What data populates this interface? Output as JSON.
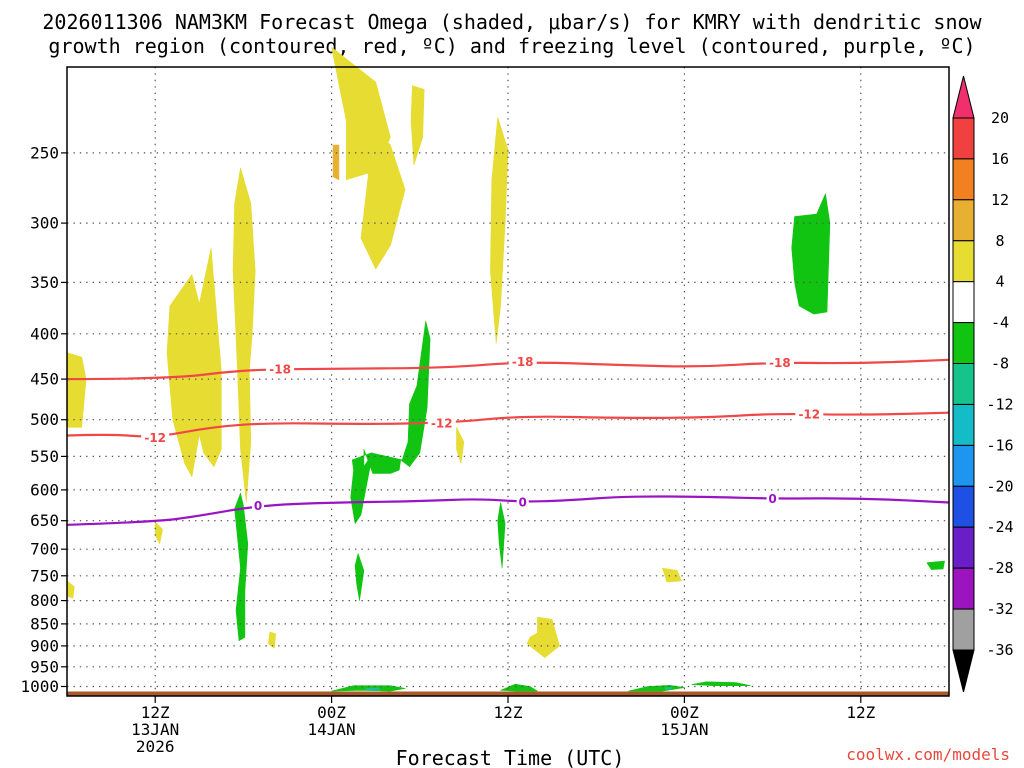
{
  "chart_data": {
    "type": "heatmap",
    "title_line1": "2026011306 NAM3KM Forecast Omega (shaded, μbar/s) for KMRY with dendritic snow",
    "title_line2": "growth region (contoured, red, ºC) and freezing level (contoured, purple, ºC)",
    "xlabel": "Forecast Time (UTC)",
    "credit": "coolwx.com/models",
    "x_range_hours": [
      0,
      60
    ],
    "y_range_hpa": [
      200,
      1025
    ],
    "y_ticks": [
      250,
      300,
      350,
      400,
      450,
      500,
      550,
      600,
      650,
      700,
      750,
      800,
      850,
      900,
      950,
      1000
    ],
    "x_ticks": [
      {
        "hour": 6,
        "line1": "12Z",
        "line2": "13JAN",
        "line3": "2026"
      },
      {
        "hour": 18,
        "line1": "00Z",
        "line2": "14JAN",
        "line3": ""
      },
      {
        "hour": 30,
        "line1": "12Z",
        "line2": "",
        "line3": ""
      },
      {
        "hour": 42,
        "line1": "00Z",
        "line2": "15JAN",
        "line3": ""
      },
      {
        "hour": 54,
        "line1": "12Z",
        "line2": "",
        "line3": ""
      }
    ],
    "colorbar": {
      "labels": [
        "20",
        "16",
        "12",
        "8",
        "4",
        "-4",
        "-8",
        "-12",
        "-16",
        "-20",
        "-24",
        "-28",
        "-32",
        "-36"
      ],
      "colors": [
        "#f0306e",
        "#f04040",
        "#f08020",
        "#e8b030",
        "#e6dc32",
        "#ffffff",
        "#12c412",
        "#14c48a",
        "#14bcc8",
        "#1e96f0",
        "#1e50e6",
        "#6a1ec8",
        "#9c14c0",
        "#a0a0a0",
        "#000000"
      ]
    },
    "isotherms": [
      {
        "label": "-18",
        "color": "#f04848",
        "label_hours": [
          14.5,
          31,
          48.5
        ],
        "points": [
          [
            0,
            450
          ],
          [
            7,
            450
          ],
          [
            12,
            439
          ],
          [
            18,
            438
          ],
          [
            26,
            437
          ],
          [
            31,
            430
          ],
          [
            38,
            434
          ],
          [
            43,
            436
          ],
          [
            48,
            431
          ],
          [
            54,
            432
          ],
          [
            60,
            428
          ]
        ]
      },
      {
        "label": "-12",
        "color": "#f04848",
        "label_hours": [
          6,
          25.5,
          50.5
        ],
        "points": [
          [
            0,
            521
          ],
          [
            3,
            519
          ],
          [
            6,
            524
          ],
          [
            10,
            509
          ],
          [
            14,
            504
          ],
          [
            20,
            506
          ],
          [
            26,
            504
          ],
          [
            31,
            495
          ],
          [
            38,
            498
          ],
          [
            44,
            497
          ],
          [
            48,
            492
          ],
          [
            54,
            494
          ],
          [
            60,
            491
          ]
        ]
      },
      {
        "label": "0",
        "color": "#9a14c4",
        "label_hours": [
          13,
          31,
          48
        ],
        "points": [
          [
            0,
            657
          ],
          [
            6,
            652
          ],
          [
            9,
            642
          ],
          [
            13,
            625
          ],
          [
            18,
            620
          ],
          [
            24,
            618
          ],
          [
            28,
            614
          ],
          [
            31,
            619
          ],
          [
            34,
            617
          ],
          [
            38,
            610
          ],
          [
            44,
            611
          ],
          [
            48,
            614
          ],
          [
            54,
            613
          ],
          [
            60,
            620
          ]
        ]
      }
    ],
    "omega_regions": [
      {
        "value": "4 to 8",
        "color": "#e6dc32",
        "points": [
          [
            18,
            190
          ],
          [
            21,
            208
          ],
          [
            22,
            240
          ],
          [
            21,
            262
          ],
          [
            19,
            268
          ],
          [
            19,
            230
          ]
        ]
      },
      {
        "value": "4 to 8",
        "color": "#e6dc32",
        "points": [
          [
            20,
            225
          ],
          [
            22,
            245
          ],
          [
            23,
            275
          ],
          [
            22,
            318
          ],
          [
            21,
            338
          ],
          [
            20,
            312
          ],
          [
            20.5,
            265
          ]
        ]
      },
      {
        "value": "8 to 12",
        "color": "#e8b030",
        "points": [
          [
            18.1,
            245
          ],
          [
            18.5,
            245
          ],
          [
            18.5,
            268
          ],
          [
            18.1,
            266
          ]
        ]
      },
      {
        "value": "4 to 8",
        "color": "#e6dc32",
        "points": [
          [
            23.5,
            210
          ],
          [
            24.3,
            212
          ],
          [
            24.2,
            240
          ],
          [
            23.6,
            258
          ],
          [
            23.4,
            230
          ]
        ]
      },
      {
        "value": "4 to 8",
        "color": "#e6dc32",
        "points": [
          [
            29.3,
            228
          ],
          [
            30,
            248
          ],
          [
            29.8,
            300
          ],
          [
            29.5,
            372
          ],
          [
            29.2,
            410
          ],
          [
            28.8,
            340
          ],
          [
            28.9,
            268
          ]
        ]
      },
      {
        "value": "4 to 8",
        "color": "#e6dc32",
        "points": [
          [
            11.8,
            260
          ],
          [
            12.5,
            285
          ],
          [
            12.8,
            340
          ],
          [
            12.6,
            400
          ],
          [
            12.4,
            440
          ],
          [
            12.5,
            530
          ],
          [
            12.2,
            620
          ],
          [
            11.8,
            540
          ],
          [
            11.6,
            440
          ],
          [
            11.3,
            340
          ],
          [
            11.4,
            285
          ]
        ]
      },
      {
        "value": "4 to 8",
        "color": "#e6dc32",
        "points": [
          [
            7,
            372
          ],
          [
            8.5,
            343
          ],
          [
            9,
            370
          ],
          [
            9.8,
            320
          ],
          [
            10.5,
            440
          ],
          [
            10.5,
            540
          ],
          [
            10,
            565
          ],
          [
            9.3,
            545
          ],
          [
            9,
            520
          ],
          [
            8.5,
            580
          ],
          [
            8,
            560
          ],
          [
            7.2,
            500
          ],
          [
            6.8,
            420
          ]
        ]
      },
      {
        "value": "4 to 8",
        "color": "#e6dc32",
        "points": [
          [
            0,
            420
          ],
          [
            1,
            425
          ],
          [
            1.3,
            450
          ],
          [
            1,
            510
          ],
          [
            0,
            510
          ]
        ]
      },
      {
        "value": "4 to 8",
        "color": "#e6dc32",
        "points": [
          [
            26.5,
            510
          ],
          [
            27,
            530
          ],
          [
            26.8,
            560
          ],
          [
            26.5,
            540
          ]
        ]
      },
      {
        "value": "4 to 8",
        "color": "#e6dc32",
        "points": [
          [
            6,
            652
          ],
          [
            6.5,
            665
          ],
          [
            6.3,
            690
          ],
          [
            6,
            675
          ]
        ]
      },
      {
        "value": "4 to 8",
        "color": "#e6dc32",
        "points": [
          [
            0,
            760
          ],
          [
            0.5,
            772
          ],
          [
            0.4,
            795
          ],
          [
            0,
            790
          ]
        ]
      },
      {
        "value": "4 to 8",
        "color": "#e6dc32",
        "points": [
          [
            40.5,
            735
          ],
          [
            41.5,
            740
          ],
          [
            41.8,
            760
          ],
          [
            40.8,
            762
          ]
        ]
      },
      {
        "value": "4 to 8",
        "color": "#e6dc32",
        "points": [
          [
            32,
            835
          ],
          [
            33,
            840
          ],
          [
            33.5,
            900
          ],
          [
            32.5,
            928
          ],
          [
            31.3,
            895
          ],
          [
            31.5,
            880
          ],
          [
            32,
            870
          ]
        ]
      },
      {
        "value": "4 to 8",
        "color": "#e6dc32",
        "points": [
          [
            13.8,
            868
          ],
          [
            14.2,
            872
          ],
          [
            14.1,
            905
          ],
          [
            13.7,
            895
          ]
        ]
      },
      {
        "value": "-4 to -8",
        "color": "#12c412",
        "points": [
          [
            49.5,
            295
          ],
          [
            51,
            293
          ],
          [
            51.6,
            278
          ],
          [
            51.9,
            300
          ],
          [
            51.7,
            378
          ],
          [
            50.8,
            380
          ],
          [
            49.8,
            372
          ],
          [
            49.5,
            350
          ],
          [
            49.3,
            320
          ]
        ]
      },
      {
        "value": "-4 to -8",
        "color": "#12c412",
        "points": [
          [
            24.4,
            387
          ],
          [
            24.7,
            405
          ],
          [
            24.5,
            485
          ],
          [
            24.0,
            545
          ],
          [
            23.3,
            565
          ],
          [
            22.7,
            555
          ],
          [
            22.6,
            570
          ],
          [
            22,
            575
          ],
          [
            20.8,
            575
          ],
          [
            20.2,
            540
          ],
          [
            20.2,
            565
          ],
          [
            20.8,
            545
          ],
          [
            20.4,
            590
          ],
          [
            20,
            640
          ],
          [
            19.6,
            655
          ],
          [
            19.3,
            612
          ],
          [
            19.5,
            570
          ],
          [
            19.4,
            555
          ],
          [
            20.7,
            545
          ],
          [
            22.8,
            555
          ],
          [
            23.2,
            530
          ],
          [
            23.3,
            480
          ],
          [
            23.8,
            458
          ]
        ]
      },
      {
        "value": "-4 to -8",
        "color": "#12c412",
        "points": [
          [
            11.8,
            605
          ],
          [
            12,
            625
          ],
          [
            12.3,
            690
          ],
          [
            12.1,
            780
          ],
          [
            12.1,
            880
          ],
          [
            11.7,
            888
          ],
          [
            11.5,
            820
          ],
          [
            11.8,
            735
          ],
          [
            11.4,
            630
          ]
        ]
      },
      {
        "value": "-4 to -8",
        "color": "#12c412",
        "points": [
          [
            19.8,
            708
          ],
          [
            20.2,
            740
          ],
          [
            19.9,
            800
          ],
          [
            19.7,
            765
          ],
          [
            19.6,
            730
          ]
        ]
      },
      {
        "value": "-4 to -8",
        "color": "#12c412",
        "points": [
          [
            29.5,
            620
          ],
          [
            29.8,
            655
          ],
          [
            29.6,
            735
          ],
          [
            29.4,
            690
          ],
          [
            29.3,
            650
          ]
        ]
      },
      {
        "value": "-4 to -8",
        "color": "#12c412",
        "points": [
          [
            58.5,
            725
          ],
          [
            59.7,
            722
          ],
          [
            59.6,
            737
          ],
          [
            58.8,
            738
          ]
        ]
      },
      {
        "value": "-4 to -8",
        "color": "#12c412",
        "points": [
          [
            18,
            1012
          ],
          [
            19.5,
            998
          ],
          [
            22,
            998
          ],
          [
            23,
            1005
          ],
          [
            22,
            1012
          ],
          [
            20,
            1010
          ]
        ]
      },
      {
        "value": "-4 to -8",
        "color": "#12c412",
        "points": [
          [
            29.5,
            1010
          ],
          [
            30.5,
            994
          ],
          [
            31.5,
            1000
          ],
          [
            32,
            1012
          ],
          [
            30.5,
            1012
          ]
        ]
      },
      {
        "value": "-4 to -8",
        "color": "#12c412",
        "points": [
          [
            38.2,
            1012
          ],
          [
            39.5,
            1000
          ],
          [
            41,
            997
          ],
          [
            42,
            1003
          ],
          [
            40.5,
            1012
          ]
        ]
      },
      {
        "value": "-4 to -8",
        "color": "#12c412",
        "points": [
          [
            42.5,
            995
          ],
          [
            43.5,
            988
          ],
          [
            45.5,
            990
          ],
          [
            46.5,
            998
          ],
          [
            44,
            998
          ]
        ]
      },
      {
        "value": "-8 to -12",
        "color": "#14c48a",
        "points": [
          [
            20.3,
            1005
          ],
          [
            21.2,
            1004
          ],
          [
            21.3,
            1010
          ],
          [
            20.4,
            1010
          ]
        ]
      },
      {
        "value": "-8 to -12",
        "color": "#14c48a",
        "points": [
          [
            40.7,
            1003
          ],
          [
            41.1,
            1002
          ],
          [
            41.1,
            1007
          ],
          [
            40.7,
            1007
          ]
        ]
      }
    ],
    "ground_hpa": 1013,
    "ground_color": "#a8582a"
  }
}
